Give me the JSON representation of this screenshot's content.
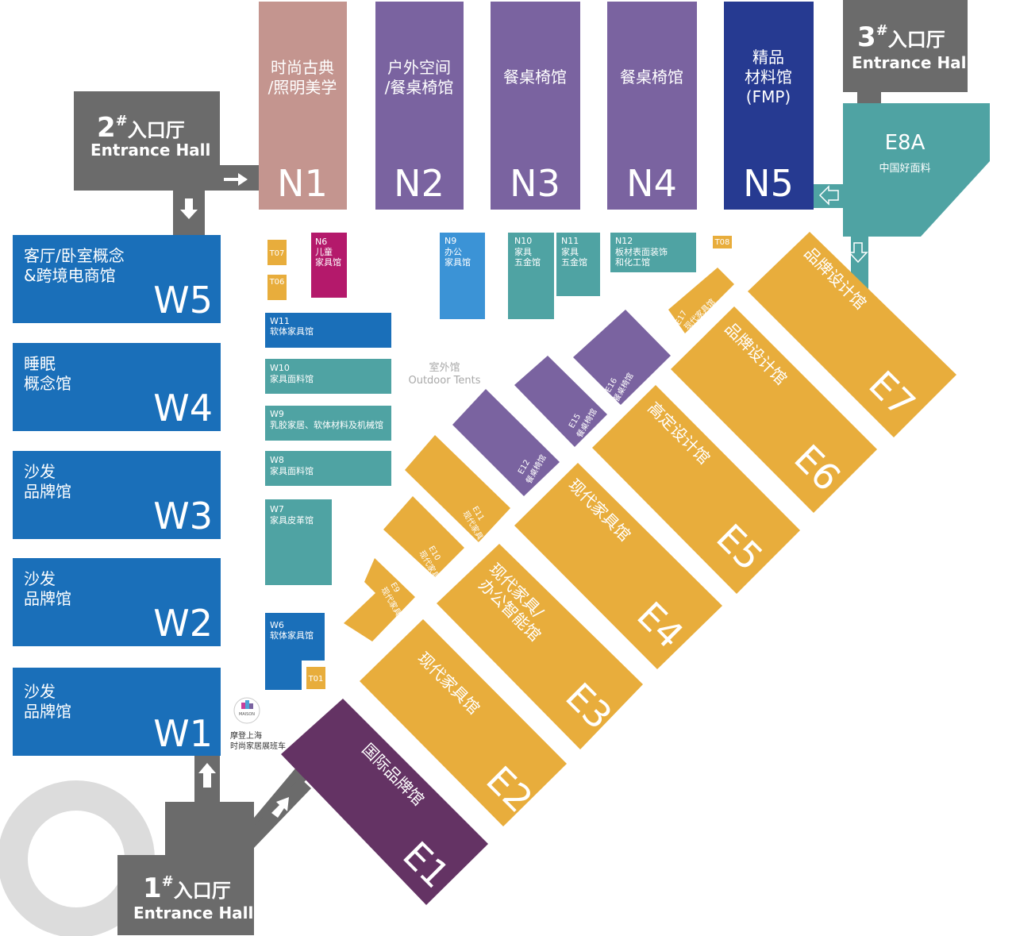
{
  "colors": {
    "grey": "#6b6b6b",
    "blue": "#1a6fb9",
    "teal": "#4fa3a3",
    "purple": "#7a63a0",
    "navy": "#263a91",
    "pink": "#c4958f",
    "orange": "#e8ad3c",
    "dark_purple": "#643364",
    "magenta": "#b4196b",
    "light_blue": "#3b93d6",
    "ring": "#d9d9d9"
  },
  "entrances": {
    "e1": {
      "num": "1",
      "sup": "#",
      "cn": "入口厅",
      "en": "Entrance Hall"
    },
    "e2": {
      "num": "2",
      "sup": "#",
      "cn": "入口厅",
      "en": "Entrance Hall"
    },
    "e3": {
      "num": "3",
      "sup": "#",
      "cn": "入口厅",
      "en": "Entrance Hall"
    }
  },
  "north": {
    "n1": {
      "code": "N1",
      "l1": "时尚古典",
      "l2": "/照明美学"
    },
    "n2": {
      "code": "N2",
      "l1": "户外空间",
      "l2": "/餐桌椅馆"
    },
    "n3": {
      "code": "N3",
      "l1": "餐桌椅馆"
    },
    "n4": {
      "code": "N4",
      "l1": "餐桌椅馆"
    },
    "n5": {
      "code": "N5",
      "l1": "精品",
      "l2": "材料馆",
      "l3": "(FMP)"
    }
  },
  "e8a": {
    "code": "E8A",
    "label": "中国好面料"
  },
  "west": {
    "w5": {
      "code": "W5",
      "l1": "客厅/卧室概念",
      "l2": "&跨境电商馆"
    },
    "w4": {
      "code": "W4",
      "l1": "睡眠",
      "l2": "概念馆"
    },
    "w3": {
      "code": "W3",
      "l1": "沙发",
      "l2": "品牌馆"
    },
    "w2": {
      "code": "W2",
      "l1": "沙发",
      "l2": "品牌馆"
    },
    "w1": {
      "code": "W1",
      "l1": "沙发",
      "l2": "品牌馆"
    }
  },
  "inner_west": {
    "w11": {
      "code": "W11",
      "label": "软体家具馆"
    },
    "w10": {
      "code": "W10",
      "label": "家具面料馆"
    },
    "w9": {
      "code": "W9",
      "label": "乳胶家居、软体材料及机械馆"
    },
    "w8": {
      "code": "W8",
      "label": "家具面料馆"
    },
    "w7": {
      "code": "W7",
      "label": "家具皮革馆"
    },
    "w6": {
      "code": "W6",
      "label": "软体家具馆"
    }
  },
  "small_north": {
    "n6": {
      "code": "N6",
      "l1": "儿童",
      "l2": "家具馆"
    },
    "n9": {
      "code": "N9",
      "l1": "办公",
      "l2": "家具馆"
    },
    "n10": {
      "code": "N10",
      "l1": "家具",
      "l2": "五金馆"
    },
    "n11": {
      "code": "N11",
      "l1": "家具",
      "l2": "五金馆"
    },
    "n12": {
      "code": "N12",
      "l1": "板材表面装饰",
      "l2": "和化工馆"
    }
  },
  "tents": {
    "t07": "T07",
    "t06": "T06",
    "t08": "T08",
    "t01": "T01"
  },
  "outdoor": {
    "cn": "室外馆",
    "en": "Outdoor Tents"
  },
  "east": {
    "e1": {
      "code": "E1",
      "label": "国际品牌馆"
    },
    "e2": {
      "code": "E2",
      "label": "现代家具馆"
    },
    "e3": {
      "code": "E3",
      "l1": "现代家具/",
      "l2": "办公智能馆"
    },
    "e4": {
      "code": "E4",
      "label": "现代家具馆"
    },
    "e5": {
      "code": "E5",
      "label": "高定设计馆"
    },
    "e6": {
      "code": "E6",
      "label": "品牌设计馆"
    },
    "e7": {
      "code": "E7",
      "label": "品牌设计馆"
    }
  },
  "small_east": {
    "e9": {
      "code": "E9",
      "label": "现代家具馆"
    },
    "e10": {
      "code": "E10",
      "label": "现代家具馆"
    },
    "e11": {
      "code": "E11",
      "label": "现代家具馆"
    },
    "e12": {
      "code": "E12",
      "label": "餐桌椅馆"
    },
    "e15": {
      "code": "E15",
      "label": "餐桌椅馆"
    },
    "e16": {
      "code": "E16",
      "label": "餐桌椅馆"
    },
    "e17": {
      "code": "E17",
      "label": "现代家具馆"
    }
  },
  "shuttle": {
    "logo": "MAISON",
    "l1": "摩登上海",
    "l2": "时尚家居展班车"
  }
}
